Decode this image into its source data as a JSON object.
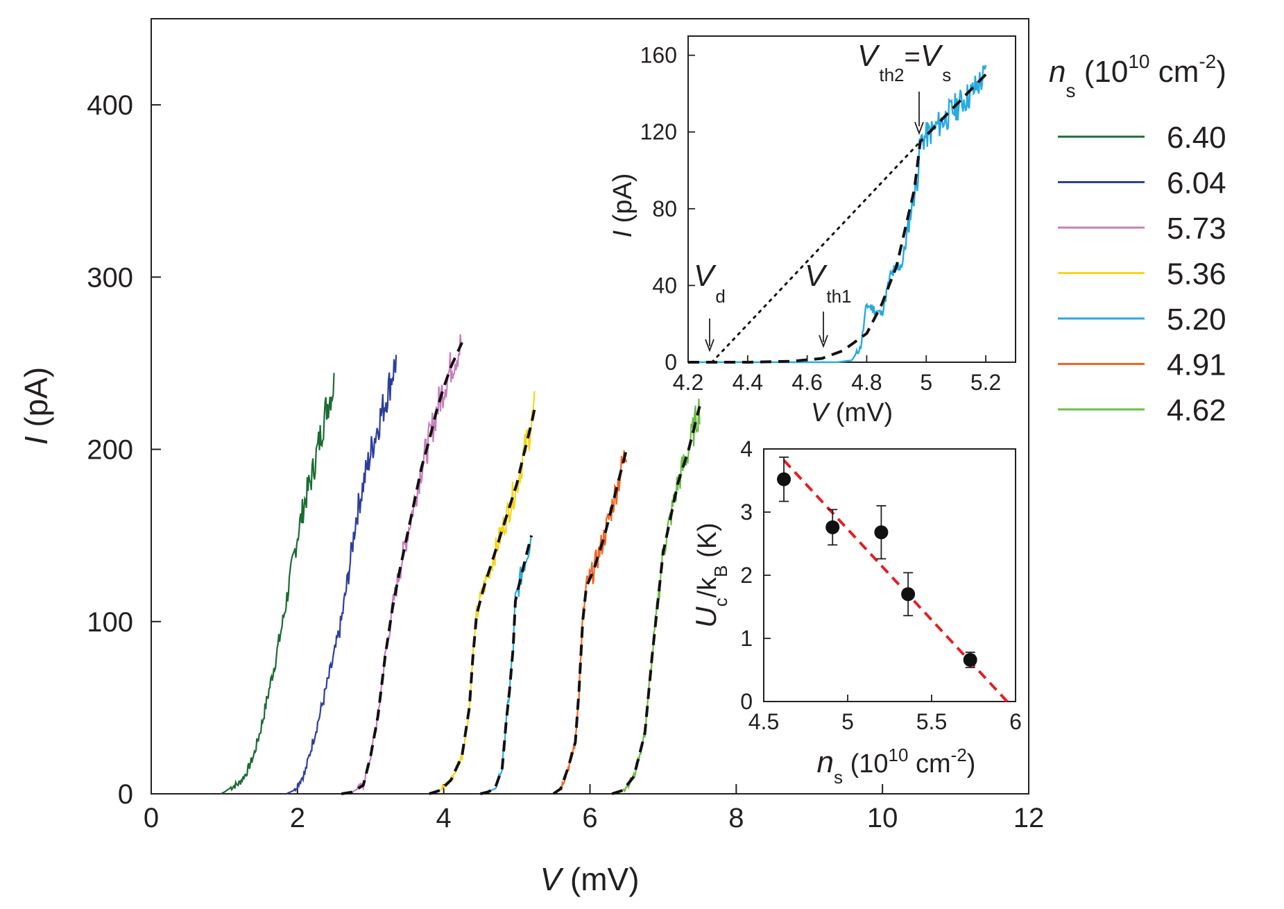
{
  "chart_data": [
    {
      "id": "main",
      "type": "line",
      "xlabel": {
        "italic": "V",
        "text": " (mV)"
      },
      "ylabel": {
        "italic": "I",
        "text": " (pA)"
      },
      "xlim": [
        0,
        12
      ],
      "ylim": [
        0,
        450
      ],
      "xticks": [
        "0",
        "2",
        "4",
        "6",
        "8",
        "10",
        "12"
      ],
      "yticks": [
        "0",
        "100",
        "200",
        "300",
        "400"
      ],
      "xtick_values": [
        0,
        2,
        4,
        6,
        8,
        10,
        12
      ],
      "ytick_values": [
        0,
        100,
        200,
        300,
        400
      ],
      "legend": {
        "title_symbol": "n",
        "title_sub": "s",
        "title_unit_prefix": " (10",
        "title_unit_exp": "10",
        "title_unit_mid": " cm",
        "title_unit_exp2": "-2",
        "title_unit_suffix": ")",
        "placement": "right"
      },
      "series": [
        {
          "name": "6.40",
          "color": "#1b6b33",
          "fit": false,
          "points": [
            [
              0.95,
              0
            ],
            [
              1.0,
              1
            ],
            [
              1.1,
              4
            ],
            [
              1.2,
              6
            ],
            [
              1.3,
              12
            ],
            [
              1.4,
              22
            ],
            [
              1.5,
              38
            ],
            [
              1.6,
              58
            ],
            [
              1.7,
              78
            ],
            [
              1.8,
              100
            ],
            [
              1.9,
              125
            ],
            [
              2.0,
              150
            ],
            [
              2.1,
              170
            ],
            [
              2.2,
              185
            ],
            [
              2.3,
              205
            ],
            [
              2.4,
              225
            ],
            [
              2.5,
              238
            ]
          ]
        },
        {
          "name": "6.04",
          "color": "#2c3e9e",
          "fit": false,
          "points": [
            [
              1.85,
              0
            ],
            [
              1.95,
              2
            ],
            [
              2.1,
              12
            ],
            [
              2.3,
              45
            ],
            [
              2.5,
              80
            ],
            [
              2.6,
              100
            ],
            [
              2.7,
              128
            ],
            [
              2.8,
              160
            ],
            [
              2.9,
              180
            ],
            [
              3.0,
              198
            ],
            [
              3.1,
              214
            ],
            [
              3.2,
              228
            ],
            [
              3.3,
              244
            ],
            [
              3.35,
              252
            ]
          ]
        },
        {
          "name": "5.73",
          "color": "#c77fbd",
          "fit": true,
          "points": [
            [
              2.6,
              0
            ],
            [
              2.75,
              1
            ],
            [
              2.9,
              5
            ],
            [
              3.0,
              22
            ],
            [
              3.1,
              45
            ],
            [
              3.2,
              80
            ],
            [
              3.3,
              108
            ],
            [
              3.4,
              130
            ],
            [
              3.5,
              150
            ],
            [
              3.6,
              170
            ],
            [
              3.7,
              190
            ],
            [
              3.8,
              205
            ],
            [
              3.9,
              222
            ],
            [
              4.0,
              236
            ],
            [
              4.1,
              248
            ],
            [
              4.25,
              262
            ]
          ]
        },
        {
          "name": "5.36",
          "color": "#f7d618",
          "fit": true,
          "points": [
            [
              3.8,
              0
            ],
            [
              3.95,
              2
            ],
            [
              4.1,
              8
            ],
            [
              4.25,
              22
            ],
            [
              4.35,
              50
            ],
            [
              4.4,
              80
            ],
            [
              4.45,
              104
            ],
            [
              4.55,
              120
            ],
            [
              4.7,
              140
            ],
            [
              4.85,
              160
            ],
            [
              5.0,
              180
            ],
            [
              5.1,
              198
            ],
            [
              5.2,
              215
            ],
            [
              5.25,
              225
            ]
          ]
        },
        {
          "name": "5.20",
          "color": "#27aae1",
          "fit": true,
          "points": [
            [
              4.5,
              0
            ],
            [
              4.6,
              1
            ],
            [
              4.7,
              3
            ],
            [
              4.8,
              15
            ],
            [
              4.85,
              40
            ],
            [
              4.9,
              60
            ],
            [
              4.95,
              85
            ],
            [
              4.98,
              112
            ],
            [
              5.05,
              125
            ],
            [
              5.15,
              142
            ],
            [
              5.2,
              150
            ]
          ]
        },
        {
          "name": "4.91",
          "color": "#f26522",
          "fit": true,
          "points": [
            [
              5.5,
              0
            ],
            [
              5.6,
              3
            ],
            [
              5.7,
              15
            ],
            [
              5.8,
              30
            ],
            [
              5.85,
              60
            ],
            [
              5.9,
              100
            ],
            [
              5.95,
              120
            ],
            [
              6.05,
              130
            ],
            [
              6.2,
              150
            ],
            [
              6.35,
              175
            ],
            [
              6.5,
              200
            ]
          ]
        },
        {
          "name": "4.62",
          "color": "#6cbd45",
          "fit": true,
          "points": [
            [
              6.3,
              0
            ],
            [
              6.45,
              2
            ],
            [
              6.6,
              10
            ],
            [
              6.75,
              35
            ],
            [
              6.85,
              80
            ],
            [
              6.95,
              120
            ],
            [
              7.0,
              140
            ],
            [
              7.1,
              160
            ],
            [
              7.2,
              180
            ],
            [
              7.35,
              200
            ],
            [
              7.5,
              225
            ]
          ]
        }
      ]
    },
    {
      "id": "inset_iv",
      "type": "line",
      "xlabel": {
        "italic": "V",
        "text": " (mV)"
      },
      "ylabel": {
        "italic": "I",
        "text": " (pA)"
      },
      "xlim": [
        4.2,
        5.3
      ],
      "ylim": [
        0,
        170
      ],
      "xticks": [
        "4.2",
        "4.4",
        "4.6",
        "4.8",
        "5",
        "5.2"
      ],
      "yticks": [
        "0",
        "40",
        "80",
        "120",
        "160"
      ],
      "xtick_values": [
        4.2,
        4.4,
        4.6,
        4.8,
        5.0,
        5.2
      ],
      "ytick_values": [
        0,
        40,
        80,
        120,
        160
      ],
      "series": [
        {
          "name": "5.20",
          "color": "#27aae1",
          "points": [
            [
              4.2,
              0
            ],
            [
              4.5,
              0
            ],
            [
              4.7,
              0
            ],
            [
              4.75,
              1
            ],
            [
              4.78,
              8
            ],
            [
              4.8,
              30
            ],
            [
              4.85,
              25
            ],
            [
              4.88,
              45
            ],
            [
              4.92,
              52
            ],
            [
              4.95,
              80
            ],
            [
              4.97,
              95
            ],
            [
              4.98,
              115
            ],
            [
              5.03,
              122
            ],
            [
              5.1,
              133
            ],
            [
              5.15,
              140
            ],
            [
              5.2,
              150
            ]
          ]
        }
      ],
      "fit_curve": [
        [
          4.2,
          0
        ],
        [
          4.4,
          0
        ],
        [
          4.55,
          0.5
        ],
        [
          4.65,
          2
        ],
        [
          4.72,
          6
        ],
        [
          4.8,
          15
        ],
        [
          4.85,
          30
        ],
        [
          4.9,
          50
        ],
        [
          4.93,
          70
        ],
        [
          4.96,
          90
        ],
        [
          4.98,
          115
        ],
        [
          5.2,
          150
        ]
      ],
      "extrapolation_line": [
        [
          4.28,
          0
        ],
        [
          4.98,
          115
        ]
      ],
      "annotations": {
        "vd": {
          "main": "V",
          "sub": "d",
          "x": 4.28
        },
        "vth1": {
          "main": "V",
          "sub": "th1",
          "x": 4.68
        },
        "vth2": {
          "main": "V",
          "sub": "th2",
          "eq": "=",
          "main2": "V",
          "sub2": "s",
          "x": 4.98,
          "y": 115
        }
      }
    },
    {
      "id": "inset_uc",
      "type": "scatter",
      "xlabel": {
        "italic": "n",
        "sub": "s",
        "text": " (10",
        "exp": "10",
        "text2": " cm",
        "exp2": "-2",
        "text3": ")"
      },
      "ylabel": {
        "italic_u": "U",
        "sub_c": "c",
        "slash": "/k",
        "sub_b": "B",
        "unit": " (K)"
      },
      "xlim": [
        4.5,
        6
      ],
      "ylim": [
        0,
        4
      ],
      "xticks": [
        "4.5",
        "5",
        "5.5",
        "6"
      ],
      "yticks": [
        "0",
        "1",
        "2",
        "3",
        "4"
      ],
      "xtick_values": [
        4.5,
        5.0,
        5.5,
        6.0
      ],
      "ytick_values": [
        0,
        1,
        2,
        3,
        4
      ],
      "points": [
        {
          "x": 4.62,
          "y": 3.52,
          "err": 0.35
        },
        {
          "x": 4.91,
          "y": 2.76,
          "err": 0.28
        },
        {
          "x": 5.2,
          "y": 2.68,
          "err": 0.42
        },
        {
          "x": 5.36,
          "y": 1.7,
          "err": 0.34
        },
        {
          "x": 5.73,
          "y": 0.66,
          "err": 0.12
        }
      ],
      "fit_line": {
        "x": [
          4.62,
          5.95
        ],
        "y": [
          3.82,
          0
        ],
        "color": "#e21f26"
      }
    }
  ]
}
